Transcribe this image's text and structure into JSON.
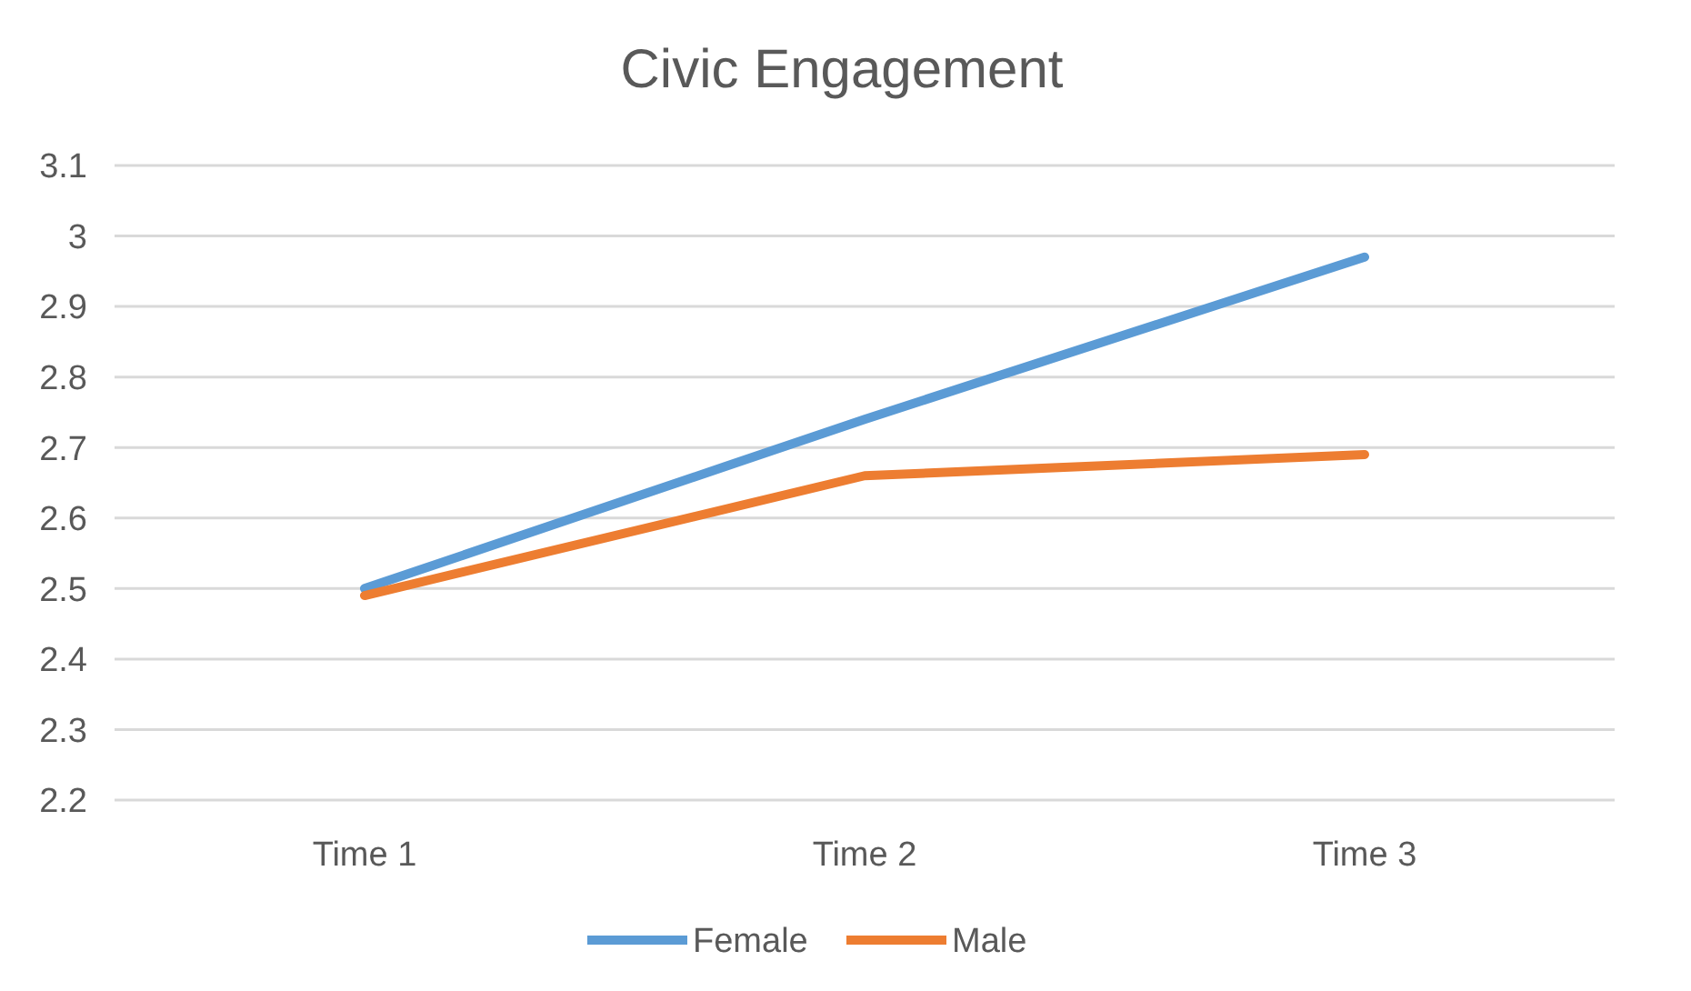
{
  "chart_data": {
    "type": "line",
    "title": "Civic Engagement",
    "categories": [
      "Time 1",
      "Time 2",
      "Time 3"
    ],
    "series": [
      {
        "name": "Female",
        "color": "#5b9bd5",
        "values": [
          2.5,
          2.74,
          2.97
        ]
      },
      {
        "name": "Male",
        "color": "#ed7d31",
        "values": [
          2.49,
          2.66,
          2.69
        ]
      }
    ],
    "ylim": [
      2.2,
      3.1
    ],
    "yticks": [
      2.2,
      2.3,
      2.4,
      2.5,
      2.6,
      2.7,
      2.8,
      2.9,
      3,
      3.1
    ],
    "grid": "y",
    "legend": "bottom",
    "marker": "none",
    "line_style": "solid"
  }
}
